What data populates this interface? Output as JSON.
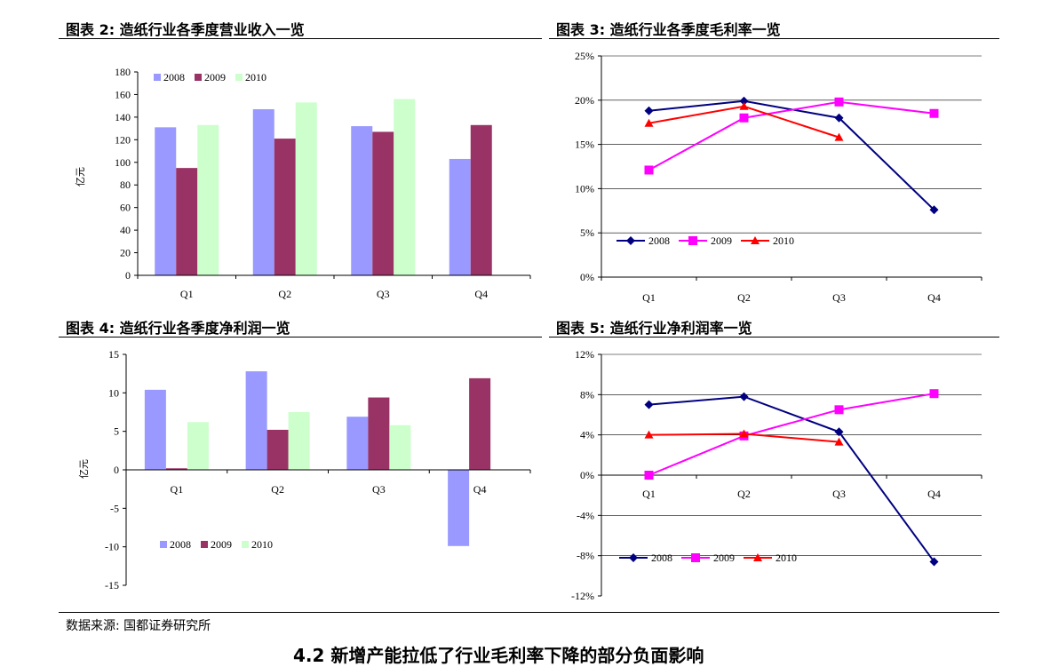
{
  "panels": [
    {
      "title": "图表 2:  造纸行业各季度营业收入一览"
    },
    {
      "title": "图表 3:  造纸行业各季度毛利率一览"
    },
    {
      "title": "图表 4:  造纸行业各季度净利润一览"
    },
    {
      "title": "图表 5:  造纸行业净利润率一览"
    }
  ],
  "source": "数据来源:  国都证券研究所",
  "cutoff_heading": "4.2 新增产能拉低了行业毛利率下降的部分负面影响",
  "colors": {
    "bar2008": "#9999ff",
    "bar2009": "#993366",
    "bar2010": "#ccffcc",
    "line2008": "#000080",
    "line2009": "#ff00ff",
    "line2010": "#ff0000"
  },
  "chart_data": [
    {
      "type": "bar",
      "title": "造纸行业各季度营业收入一览",
      "ylabel": "亿元",
      "categories": [
        "Q1",
        "Q2",
        "Q3",
        "Q4"
      ],
      "ylim": [
        0,
        180
      ],
      "yticks": [
        "0",
        "20",
        "40",
        "60",
        "80",
        "100",
        "120",
        "140",
        "160",
        "180"
      ],
      "grid": false,
      "legend": "top-left",
      "series": [
        {
          "name": "2008",
          "values": [
            131,
            147,
            132,
            103
          ]
        },
        {
          "name": "2009",
          "values": [
            95,
            121,
            127,
            133
          ]
        },
        {
          "name": "2010",
          "values": [
            133,
            153,
            156,
            null
          ]
        }
      ]
    },
    {
      "type": "line",
      "title": "造纸行业各季度毛利率一览",
      "categories": [
        "Q1",
        "Q2",
        "Q3",
        "Q4"
      ],
      "ylim": [
        0,
        25
      ],
      "yticks": [
        "0%",
        "5%",
        "10%",
        "15%",
        "20%",
        "25%"
      ],
      "grid": true,
      "legend": "bottom-left",
      "series": [
        {
          "name": "2008",
          "values": [
            18.8,
            19.9,
            18.0,
            7.6
          ]
        },
        {
          "name": "2009",
          "values": [
            12.1,
            18.0,
            19.8,
            18.5
          ]
        },
        {
          "name": "2010",
          "values": [
            17.4,
            19.3,
            15.8,
            null
          ]
        }
      ]
    },
    {
      "type": "bar",
      "title": "造纸行业各季度净利润一览",
      "ylabel": "亿元",
      "categories": [
        "Q1",
        "Q2",
        "Q3",
        "Q4"
      ],
      "ylim": [
        -15,
        15
      ],
      "yticks": [
        "-15",
        "-10",
        "-5",
        "0",
        "5",
        "10",
        "15"
      ],
      "grid": false,
      "legend": "lower-left",
      "series": [
        {
          "name": "2008",
          "values": [
            10.4,
            12.8,
            6.9,
            -9.9
          ]
        },
        {
          "name": "2009",
          "values": [
            0.2,
            5.2,
            9.4,
            11.9
          ]
        },
        {
          "name": "2010",
          "values": [
            6.2,
            7.5,
            5.8,
            null
          ]
        }
      ]
    },
    {
      "type": "line",
      "title": "造纸行业净利润率一览",
      "categories": [
        "Q1",
        "Q2",
        "Q3",
        "Q4"
      ],
      "ylim": [
        -12,
        12
      ],
      "yticks": [
        "-12%",
        "-8%",
        "-4%",
        "0%",
        "4%",
        "8%",
        "12%"
      ],
      "grid": true,
      "legend": "lower-left",
      "series": [
        {
          "name": "2008",
          "values": [
            7.0,
            7.8,
            4.3,
            -8.6
          ]
        },
        {
          "name": "2009",
          "values": [
            0.0,
            3.9,
            6.5,
            8.1
          ]
        },
        {
          "name": "2010",
          "values": [
            4.0,
            4.1,
            3.3,
            null
          ]
        }
      ]
    }
  ]
}
